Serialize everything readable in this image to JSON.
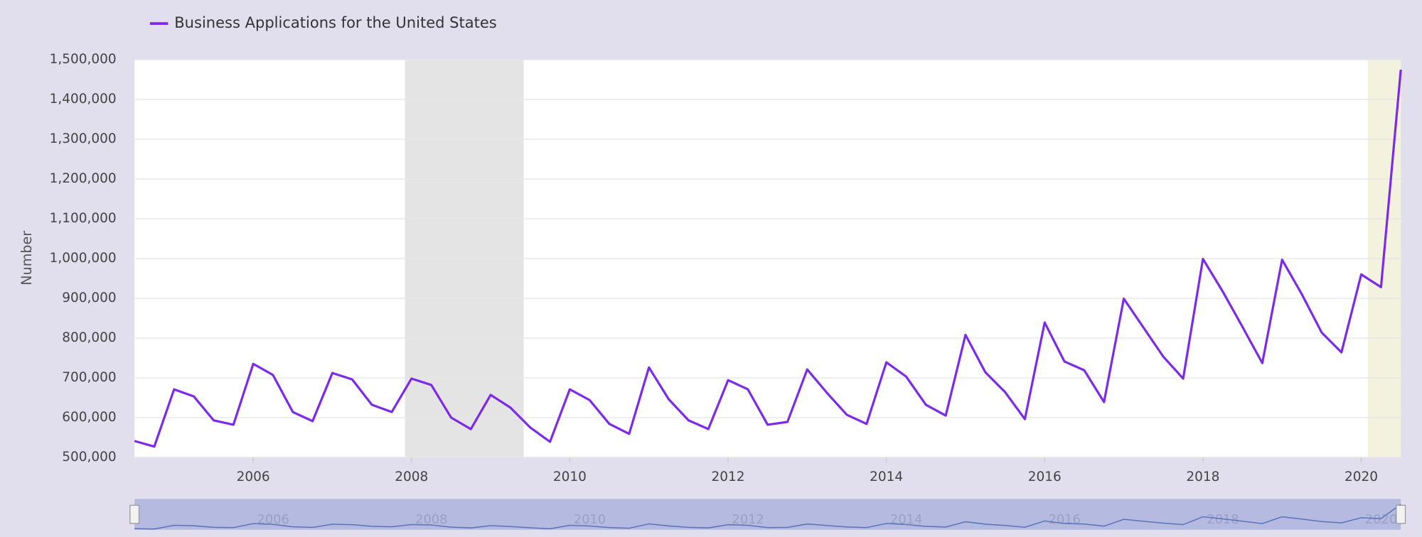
{
  "chart_data": {
    "type": "line",
    "y_label": "Number",
    "x": [
      2004.5,
      2004.75,
      2005,
      2005.25,
      2005.5,
      2005.75,
      2006,
      2006.25,
      2006.5,
      2006.75,
      2007,
      2007.25,
      2007.5,
      2007.75,
      2008,
      2008.25,
      2008.5,
      2008.75,
      2009,
      2009.25,
      2009.5,
      2009.75,
      2010,
      2010.25,
      2010.5,
      2010.75,
      2011,
      2011.25,
      2011.5,
      2011.75,
      2012,
      2012.25,
      2012.5,
      2012.75,
      2013,
      2013.25,
      2013.5,
      2013.75,
      2014,
      2014.25,
      2014.5,
      2014.75,
      2015,
      2015.25,
      2015.5,
      2015.75,
      2016,
      2016.25,
      2016.5,
      2016.75,
      2017,
      2017.25,
      2017.5,
      2017.75,
      2018,
      2018.25,
      2018.5,
      2018.75,
      2019,
      2019.25,
      2019.5,
      2019.75,
      2020,
      2020.25,
      2020.5
    ],
    "series": [
      {
        "name": "Business Applications for the United States",
        "color": "#7d2ae8",
        "values": [
          541000,
          527000,
          671000,
          653000,
          593000,
          582000,
          735000,
          707000,
          614000,
          591000,
          712000,
          696000,
          632000,
          614000,
          698000,
          682000,
          600000,
          571000,
          657000,
          625000,
          575000,
          539000,
          671000,
          644000,
          584000,
          559000,
          726000,
          646000,
          593000,
          571000,
          694000,
          671000,
          582000,
          589000,
          721000,
          662000,
          607000,
          584000,
          739000,
          703000,
          632000,
          605000,
          808000,
          714000,
          664000,
          596000,
          839000,
          741000,
          719000,
          639000,
          899000,
          826000,
          753000,
          698000,
          999000,
          917000,
          828000,
          737000,
          997000,
          910000,
          814000,
          764000,
          960000,
          928000,
          1475000
        ]
      }
    ],
    "shaded_ranges": [
      {
        "start": 2007.917,
        "end": 2009.417,
        "color": "#e4e4e4"
      },
      {
        "start": 2020.083,
        "end": 2020.5,
        "color": "#f3f2df"
      }
    ],
    "xlim": [
      2004.5,
      2020.5
    ],
    "xticks": [
      2006,
      2008,
      2010,
      2012,
      2014,
      2016,
      2018,
      2020
    ],
    "ylim": [
      500000,
      1500000
    ],
    "yticks": [
      {
        "value": 500000,
        "label": "500,000"
      },
      {
        "value": 600000,
        "label": "600,000"
      },
      {
        "value": 700000,
        "label": "700,000"
      },
      {
        "value": 800000,
        "label": "800,000"
      },
      {
        "value": 900000,
        "label": "900,000"
      },
      {
        "value": 1000000,
        "label": "1,000,000"
      },
      {
        "value": 1100000,
        "label": "1,100,000"
      },
      {
        "value": 1200000,
        "label": "1,200,000"
      },
      {
        "value": 1300000,
        "label": "1,300,000"
      },
      {
        "value": 1400000,
        "label": "1,400,000"
      },
      {
        "value": 1500000,
        "label": "1,500,000"
      }
    ],
    "grid": true
  }
}
